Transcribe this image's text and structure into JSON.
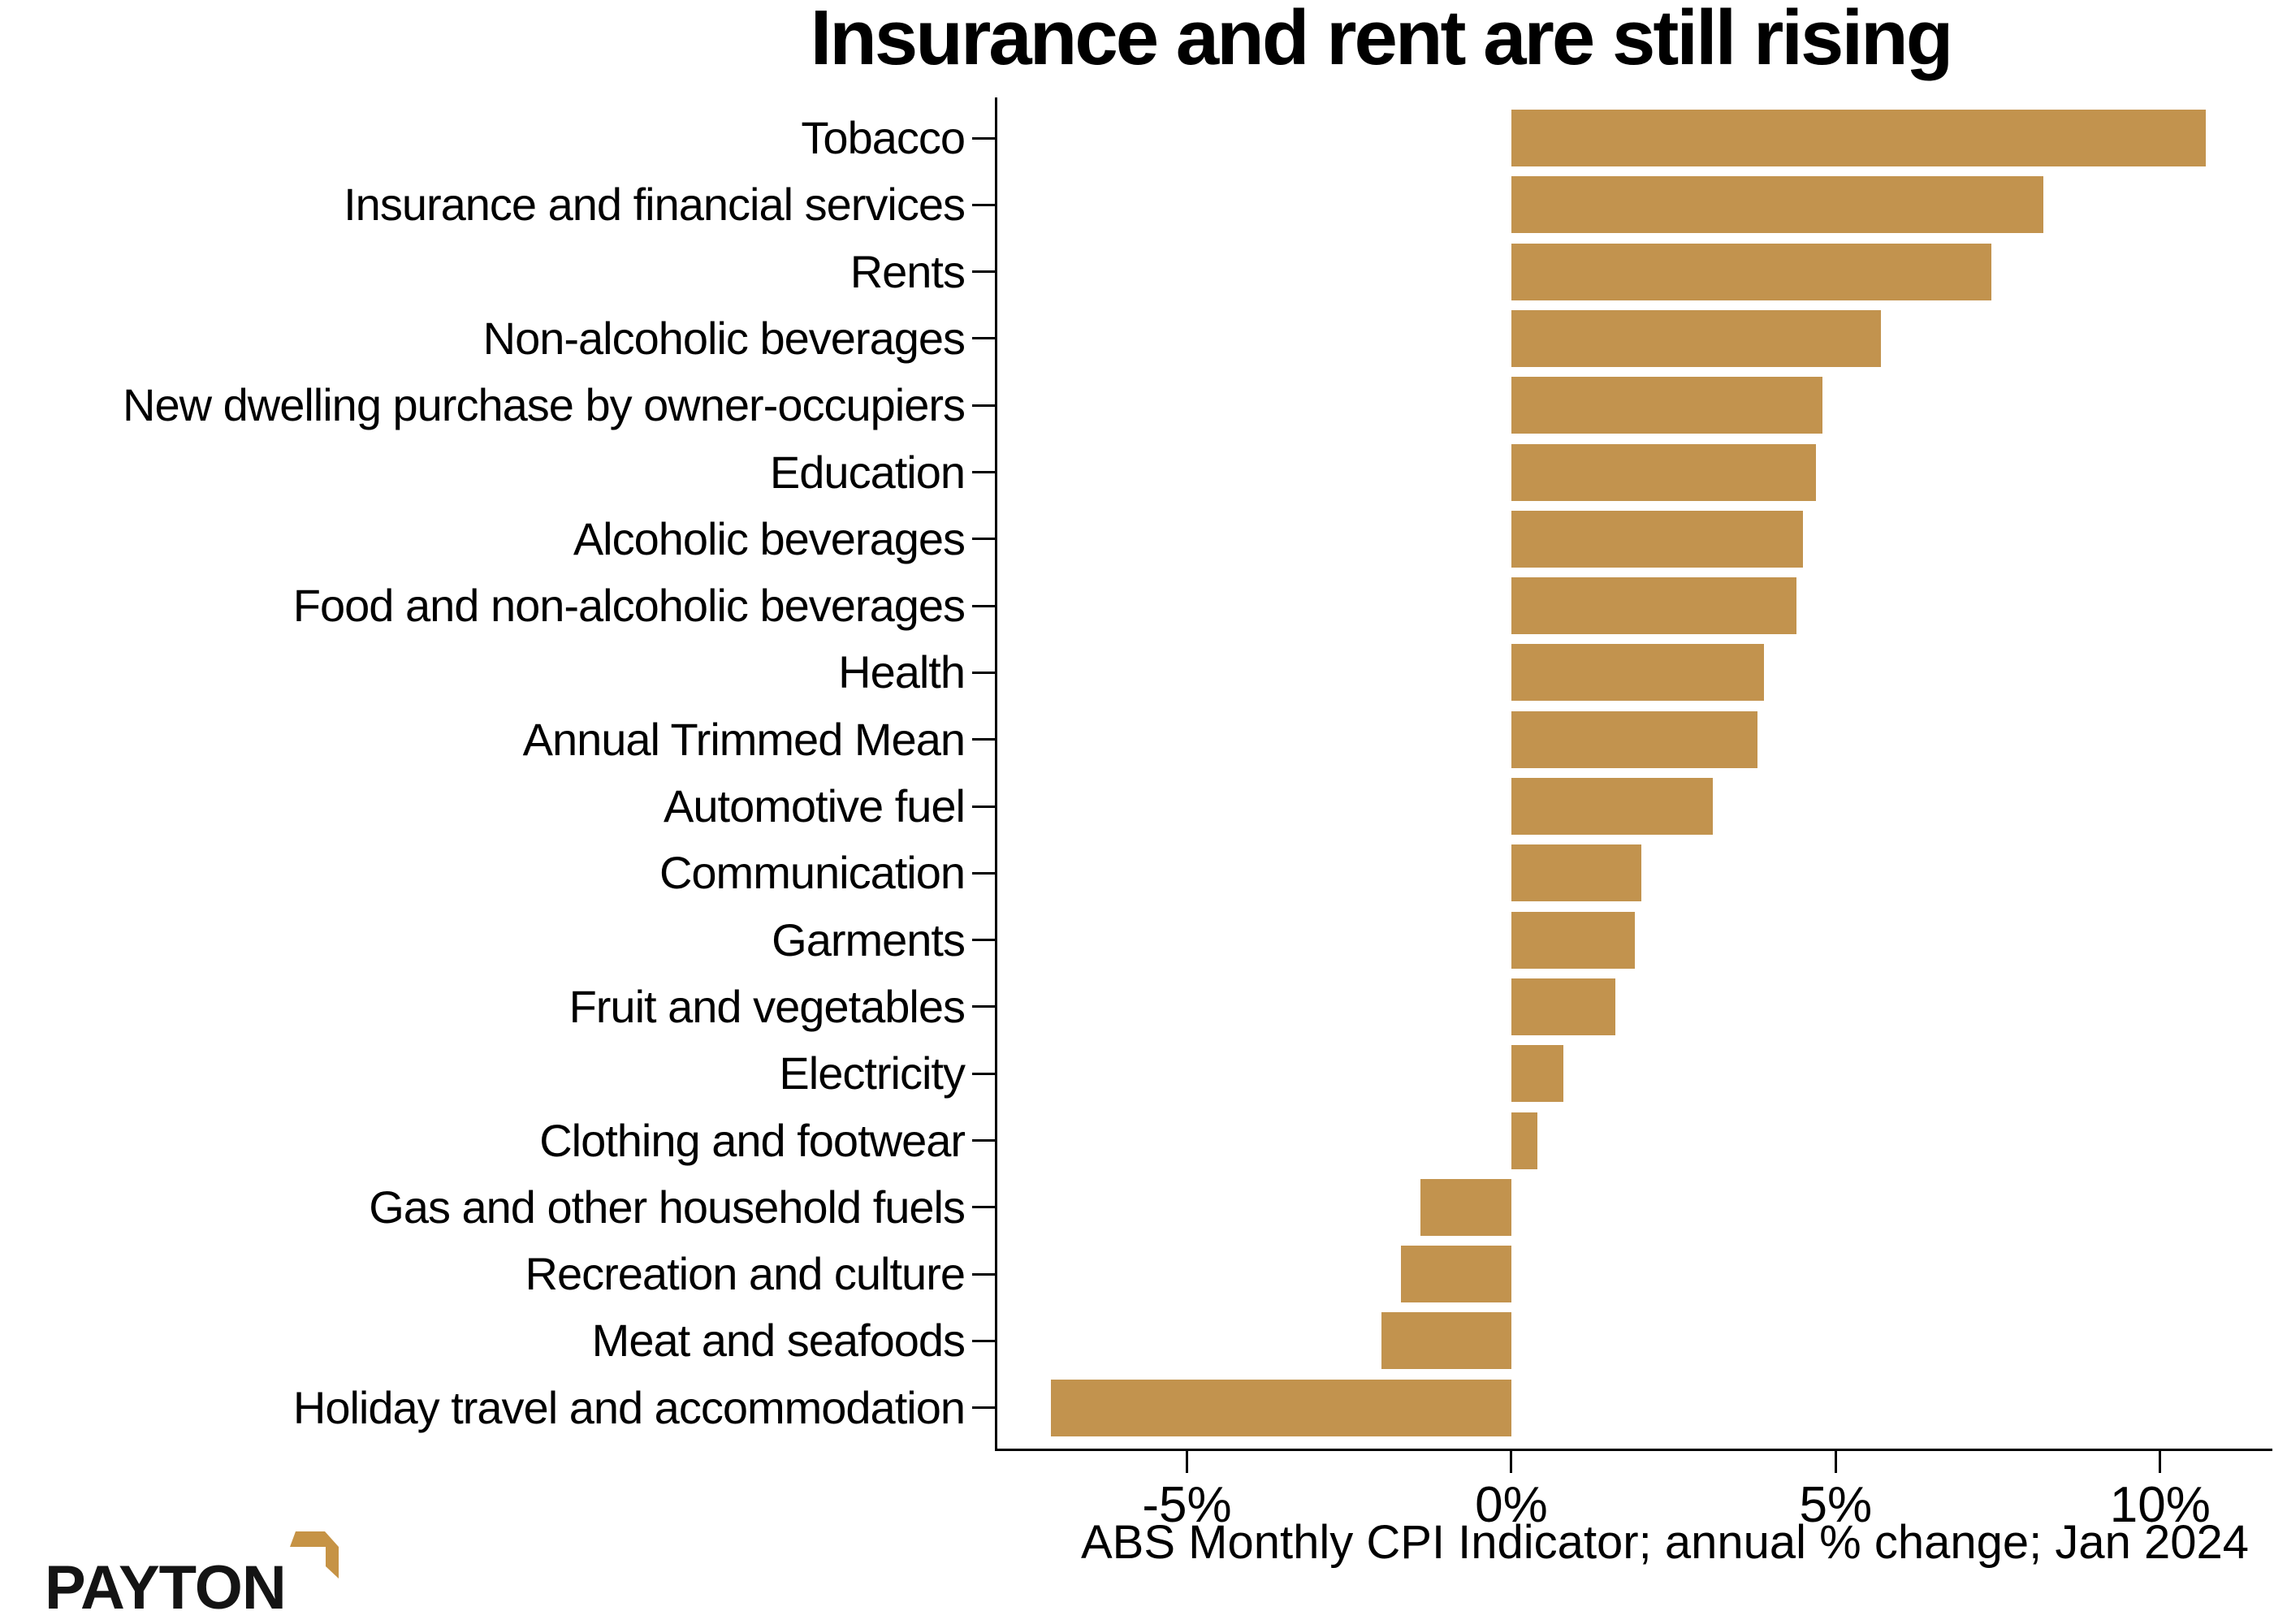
{
  "title": "Insurance and rent are still rising",
  "logo": {
    "text": "PAYTON",
    "mark_color": "#C69345"
  },
  "chart_data": {
    "type": "bar",
    "orientation": "horizontal",
    "title": "Insurance and rent are still rising",
    "xlabel": "ABS Monthly CPI Indicator; annual % change; Jan 2024",
    "ylabel": "",
    "bar_color": "#C2934E",
    "grid": false,
    "legend": null,
    "xlim": [
      -7.96,
      11.73
    ],
    "categories": [
      "Tobacco",
      "Insurance and financial services",
      "Rents",
      "Non-alcoholic beverages",
      "New dwelling purchase by owner-occupiers",
      "Education",
      "Alcoholic beverages",
      "Food and non-alcoholic beverages",
      "Health",
      "Annual Trimmed Mean",
      "Automotive fuel",
      "Communication",
      "Garments",
      "Fruit and vegetables",
      "Electricity",
      "Clothing and footwear",
      "Gas and other household fuels",
      "Recreation and culture",
      "Meat and seafoods",
      "Holiday travel and accommodation"
    ],
    "values": [
      10.7,
      8.2,
      7.4,
      5.7,
      4.8,
      4.7,
      4.5,
      4.4,
      3.9,
      3.8,
      3.1,
      2.0,
      1.9,
      1.6,
      0.8,
      0.4,
      -1.4,
      -1.7,
      -2.0,
      -7.1
    ],
    "x_ticks": [
      {
        "value": -5,
        "label": "-5%"
      },
      {
        "value": 0,
        "label": "0%"
      },
      {
        "value": 5,
        "label": "5%"
      },
      {
        "value": 10,
        "label": "10%"
      }
    ]
  }
}
